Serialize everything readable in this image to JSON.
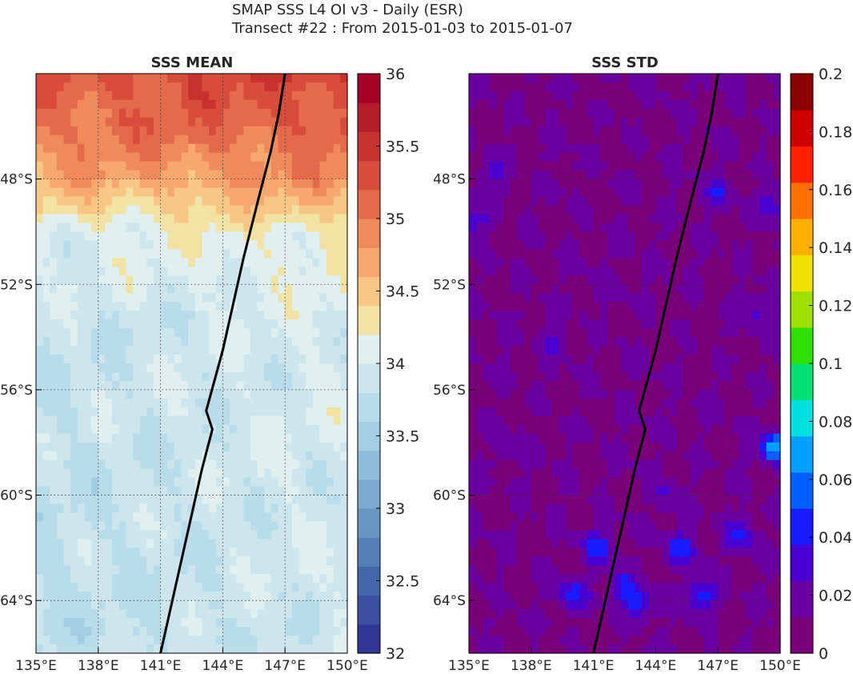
{
  "figure": {
    "title_line1": "SMAP SSS L4 OI v3 - Daily (ESR)",
    "title_line2": "Transect #22 : From 2015-01-03 to 2015-01-07"
  },
  "colors": {
    "transect_line": "#000000",
    "gridline": "#333333",
    "mean_colormap": [
      "#313695",
      "#3a4f9f",
      "#4467aa",
      "#5480b6",
      "#6896c3",
      "#7ba9cf",
      "#8fbcd9",
      "#a3cde3",
      "#b8dcea",
      "#cde6ee",
      "#e0f0f0",
      "#f2e2a4",
      "#f8c785",
      "#f7a86f",
      "#ef8a5d",
      "#e56a4b",
      "#d84c3c",
      "#c9312f",
      "#b51c27",
      "#a50026"
    ],
    "std_colormap": [
      "#7a007a",
      "#6a00a0",
      "#4a00d0",
      "#1a1aff",
      "#0060ff",
      "#00a0ff",
      "#00e0e0",
      "#00e070",
      "#30e000",
      "#a0e000",
      "#f0e000",
      "#ffb000",
      "#ff7000",
      "#ff2000",
      "#d00000",
      "#8b0000"
    ]
  },
  "chart_data": [
    {
      "type": "heatmap",
      "title": "SSS MEAN",
      "xlabel": "",
      "ylabel": "",
      "xlim": [
        135,
        150
      ],
      "ylim": [
        -66,
        -44
      ],
      "x_tick_values": [
        135,
        138,
        141,
        144,
        147,
        150
      ],
      "x_tick_labels": [
        "135°E",
        "138°E",
        "141°E",
        "144°E",
        "147°E",
        "150°E"
      ],
      "y_tick_values": [
        -48,
        -52,
        -56,
        -60,
        -64
      ],
      "y_tick_labels": [
        "48°S",
        "52°S",
        "56°S",
        "60°S",
        "64°S"
      ],
      "grid": true,
      "colorbar": {
        "range": [
          32,
          36
        ],
        "step": 0.2,
        "tick_values": [
          32,
          32.5,
          33,
          33.5,
          34,
          34.5,
          35,
          35.5,
          36
        ],
        "tick_labels": [
          "32",
          "32.5",
          "33",
          "33.5",
          "34",
          "34.5",
          "35",
          "35.5",
          "36"
        ]
      },
      "field_description": "salinity increases northward from about 33.7 near 64°S to about 35.2 near 45°S; strong front between 48°S and 50°S",
      "transect": {
        "lon": [
          141.0,
          142.0,
          143.0,
          143.5,
          143.2,
          144.0,
          145.0,
          145.8,
          146.3,
          146.7,
          147.0
        ],
        "lat": [
          -66.0,
          -62.5,
          -59.0,
          -57.5,
          -56.8,
          -54.5,
          -51.0,
          -48.5,
          -47.0,
          -45.5,
          -44.0
        ]
      }
    },
    {
      "type": "heatmap",
      "title": "SSS STD",
      "xlabel": "",
      "ylabel": "",
      "xlim": [
        135,
        150
      ],
      "ylim": [
        -66,
        -44
      ],
      "x_tick_values": [
        135,
        138,
        141,
        144,
        147,
        150
      ],
      "x_tick_labels": [
        "135°E",
        "138°E",
        "141°E",
        "144°E",
        "147°E",
        "150°E"
      ],
      "y_tick_values": [
        -48,
        -52,
        -56,
        -60,
        -64
      ],
      "y_tick_labels": [
        "48°S",
        "52°S",
        "56°S",
        "60°S",
        "64°S"
      ],
      "grid": true,
      "colorbar": {
        "range": [
          0,
          0.2
        ],
        "tick_values": [
          0,
          0.02,
          0.04,
          0.06,
          0.08,
          0.1,
          0.12,
          0.14,
          0.16,
          0.18,
          0.2
        ],
        "tick_labels": [
          "0",
          "0.02",
          "0.04",
          "0.06",
          "0.08",
          "0.1",
          "0.12",
          "0.14",
          "0.16",
          "0.18",
          "0.2"
        ]
      },
      "hotspots": [
        {
          "lon": 140.0,
          "lat": -63.8,
          "value": 0.045
        },
        {
          "lon": 141.2,
          "lat": -62.0,
          "value": 0.045
        },
        {
          "lon": 142.5,
          "lat": -63.5,
          "value": 0.045
        },
        {
          "lon": 143.2,
          "lat": -64.2,
          "value": 0.04
        },
        {
          "lon": 145.2,
          "lat": -62.0,
          "value": 0.045
        },
        {
          "lon": 146.2,
          "lat": -63.8,
          "value": 0.05
        },
        {
          "lon": 148.0,
          "lat": -61.5,
          "value": 0.045
        },
        {
          "lon": 149.8,
          "lat": -58.2,
          "value": 0.075
        },
        {
          "lon": 149.5,
          "lat": -49.0,
          "value": 0.035
        },
        {
          "lon": 135.2,
          "lat": -49.6,
          "value": 0.035
        },
        {
          "lon": 136.3,
          "lat": -47.8,
          "value": 0.03
        },
        {
          "lon": 147.0,
          "lat": -48.5,
          "value": 0.035
        },
        {
          "lon": 139.0,
          "lat": -54.2,
          "value": 0.03
        },
        {
          "lon": 148.8,
          "lat": -53.0,
          "value": 0.03
        },
        {
          "lon": 137.0,
          "lat": -58.2,
          "value": 0.025
        },
        {
          "lon": 144.5,
          "lat": -60.0,
          "value": 0.025
        }
      ],
      "transect": {
        "lon": [
          141.0,
          142.0,
          143.0,
          143.5,
          143.2,
          144.0,
          145.0,
          145.8,
          146.3,
          146.7,
          147.0
        ],
        "lat": [
          -66.0,
          -62.5,
          -59.0,
          -57.5,
          -56.8,
          -54.5,
          -51.0,
          -48.5,
          -47.0,
          -45.5,
          -44.0
        ]
      }
    }
  ]
}
